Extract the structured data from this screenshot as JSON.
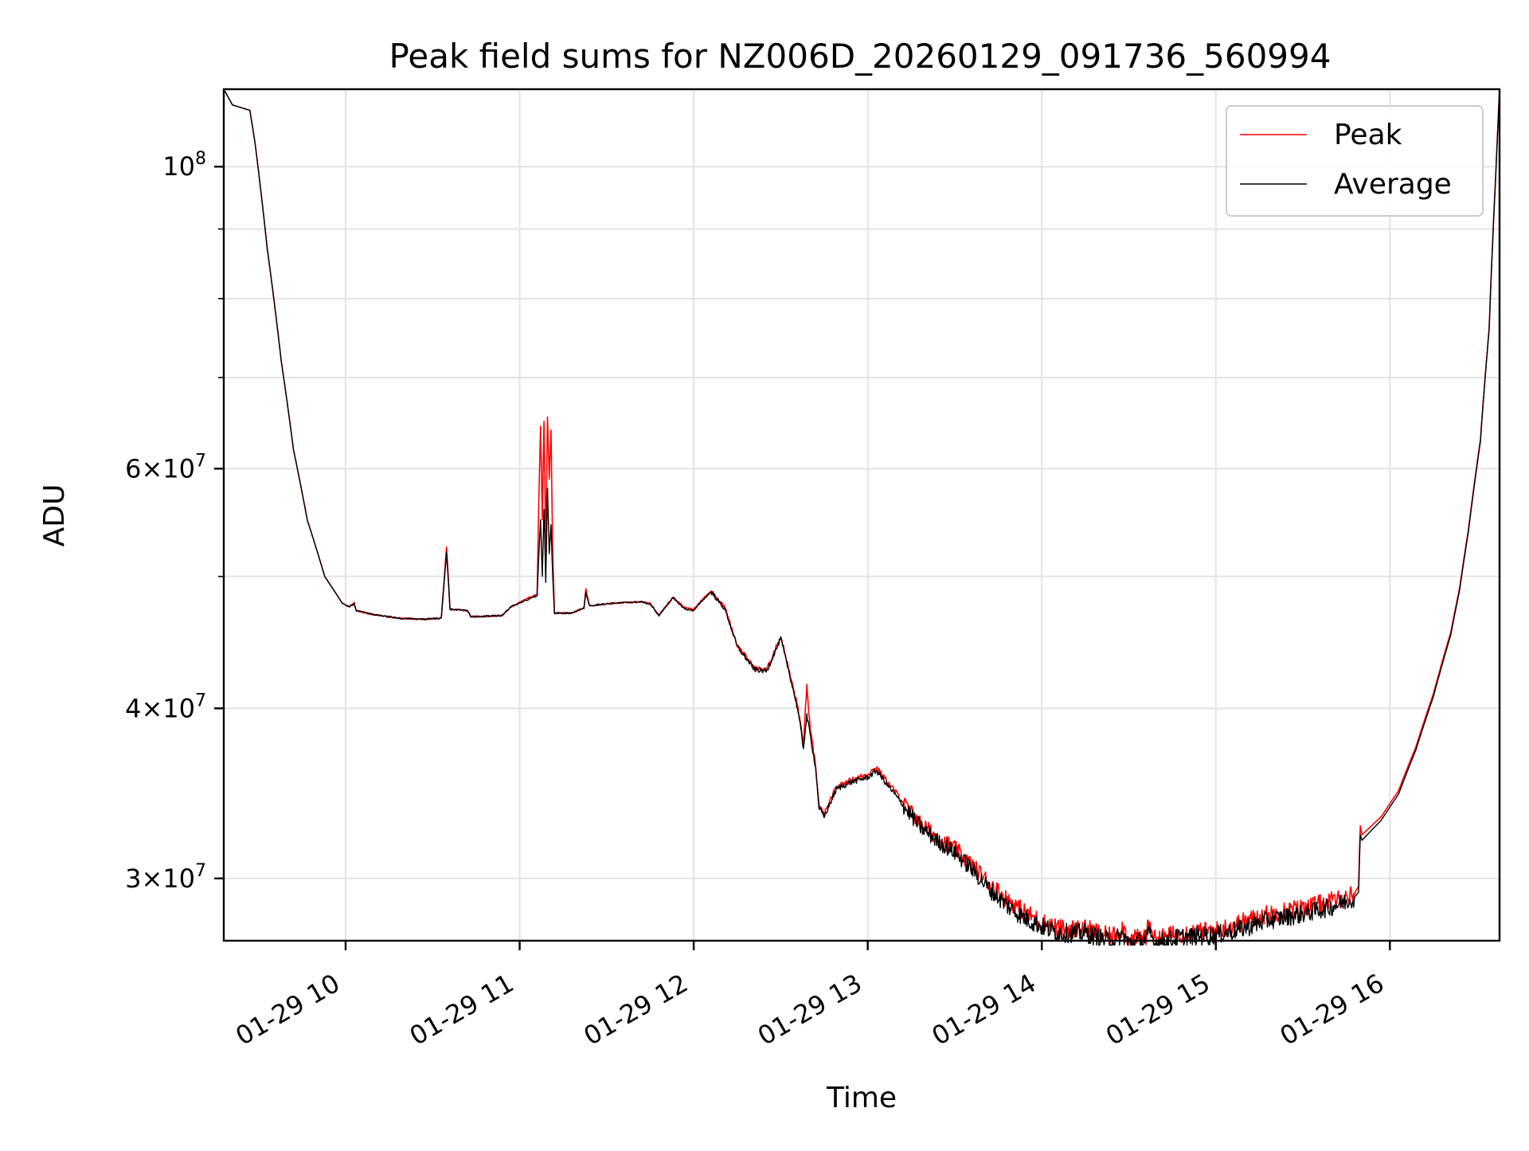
{
  "chart_data": {
    "type": "line",
    "title": "Peak field sums for NZ006D_20260129_091736_560994",
    "xlabel": "Time",
    "ylabel": "ADU",
    "yscale": "log",
    "ylim": [
      27000000,
      114000000
    ],
    "x_unit": "hours since 01-29 00:00",
    "xlim": [
      9.3,
      16.63
    ],
    "x_ticks": [
      {
        "value": 10,
        "label": "01-29 10"
      },
      {
        "value": 11,
        "label": "01-29 11"
      },
      {
        "value": 12,
        "label": "01-29 12"
      },
      {
        "value": 13,
        "label": "01-29 13"
      },
      {
        "value": 14,
        "label": "01-29 14"
      },
      {
        "value": 15,
        "label": "01-29 15"
      },
      {
        "value": 16,
        "label": "01-29 16"
      }
    ],
    "y_ticks": [
      {
        "value": 30000000,
        "mantissa": "3",
        "base": "10",
        "exponent": "7"
      },
      {
        "value": 40000000,
        "mantissa": "4",
        "base": "10",
        "exponent": "7"
      },
      {
        "value": 60000000,
        "mantissa": "6",
        "base": "10",
        "exponent": "7"
      },
      {
        "value": 100000000,
        "mantissa": "",
        "base": "10",
        "exponent": "8"
      }
    ],
    "y_minor_ticks": [
      50000000,
      70000000,
      80000000,
      90000000
    ],
    "grid": true,
    "legend_position": "upper-right",
    "series": [
      {
        "name": "Peak",
        "color": "#ff0000",
        "points": [
          [
            9.3,
            114
          ],
          [
            9.35,
            111
          ],
          [
            9.45,
            110
          ],
          [
            9.48,
            104
          ],
          [
            9.55,
            87
          ],
          [
            9.63,
            72
          ],
          [
            9.7,
            62
          ],
          [
            9.78,
            55
          ],
          [
            9.88,
            50
          ],
          [
            9.98,
            47.8
          ],
          [
            10.02,
            47.5
          ],
          [
            10.05,
            47.8
          ],
          [
            10.06,
            47.2
          ],
          [
            10.15,
            46.9
          ],
          [
            10.3,
            46.6
          ],
          [
            10.45,
            46.5
          ],
          [
            10.55,
            46.6
          ],
          [
            10.58,
            52.5
          ],
          [
            10.6,
            47.3
          ],
          [
            10.7,
            47.2
          ],
          [
            10.72,
            46.7
          ],
          [
            10.9,
            46.8
          ],
          [
            10.95,
            47.5
          ],
          [
            11.05,
            48.2
          ],
          [
            11.1,
            48.5
          ],
          [
            11.12,
            64.5
          ],
          [
            11.13,
            55.0
          ],
          [
            11.14,
            65.0
          ],
          [
            11.15,
            52.0
          ],
          [
            11.16,
            65.5
          ],
          [
            11.17,
            59.0
          ],
          [
            11.18,
            64.0
          ],
          [
            11.19,
            52.0
          ],
          [
            11.2,
            47.0
          ],
          [
            11.3,
            47.0
          ],
          [
            11.37,
            47.4
          ],
          [
            11.38,
            49.0
          ],
          [
            11.4,
            47.6
          ],
          [
            11.55,
            47.8
          ],
          [
            11.7,
            47.9
          ],
          [
            11.75,
            47.8
          ],
          [
            11.8,
            46.8
          ],
          [
            11.88,
            48.3
          ],
          [
            11.95,
            47.4
          ],
          [
            12.0,
            47.3
          ],
          [
            12.05,
            48.1
          ],
          [
            12.1,
            48.8
          ],
          [
            12.18,
            47.4
          ],
          [
            12.25,
            44.5
          ],
          [
            12.35,
            42.8
          ],
          [
            12.42,
            42.7
          ],
          [
            12.5,
            45.2
          ],
          [
            12.55,
            42.5
          ],
          [
            12.6,
            40.0
          ],
          [
            12.63,
            37.6
          ],
          [
            12.65,
            41.5
          ],
          [
            12.67,
            38.5
          ],
          [
            12.7,
            36.4
          ],
          [
            12.72,
            33.9
          ],
          [
            12.75,
            33.4
          ],
          [
            12.82,
            35.0
          ],
          [
            12.9,
            35.4
          ],
          [
            13.0,
            35.8
          ],
          [
            13.05,
            36.2
          ],
          [
            13.1,
            35.5
          ],
          [
            13.2,
            34.2
          ],
          [
            13.3,
            33.0
          ],
          [
            13.4,
            32.2
          ],
          [
            13.5,
            31.6
          ],
          [
            13.6,
            30.7
          ],
          [
            13.7,
            29.8
          ],
          [
            13.8,
            29.0
          ],
          [
            13.9,
            28.4
          ],
          [
            14.0,
            27.9
          ],
          [
            14.1,
            27.6
          ],
          [
            14.25,
            27.6
          ],
          [
            14.4,
            27.2
          ],
          [
            14.47,
            27.7
          ],
          [
            14.5,
            27.0
          ],
          [
            14.6,
            27.3
          ],
          [
            14.62,
            28.0
          ],
          [
            14.65,
            27.1
          ],
          [
            14.8,
            27.4
          ],
          [
            15.0,
            27.5
          ],
          [
            15.15,
            27.9
          ],
          [
            15.3,
            28.3
          ],
          [
            15.5,
            28.6
          ],
          [
            15.65,
            28.9
          ],
          [
            15.75,
            29.1
          ],
          [
            15.8,
            29.3
          ],
          [
            15.82,
            29.6
          ],
          [
            15.83,
            32.8
          ],
          [
            15.84,
            32.3
          ],
          [
            15.95,
            33.3
          ],
          [
            16.05,
            34.8
          ],
          [
            16.15,
            37.5
          ],
          [
            16.25,
            41.0
          ],
          [
            16.35,
            45.5
          ],
          [
            16.4,
            49.0
          ],
          [
            16.45,
            54.0
          ],
          [
            16.52,
            63.0
          ],
          [
            16.57,
            76.0
          ],
          [
            16.61,
            100.0
          ],
          [
            16.63,
            114.0
          ]
        ]
      },
      {
        "name": "Average",
        "color": "#000000",
        "points": [
          [
            9.3,
            114
          ],
          [
            9.35,
            111
          ],
          [
            9.45,
            110
          ],
          [
            9.48,
            104
          ],
          [
            9.55,
            87
          ],
          [
            9.63,
            72
          ],
          [
            9.7,
            62
          ],
          [
            9.78,
            55
          ],
          [
            9.88,
            50
          ],
          [
            9.98,
            47.8
          ],
          [
            10.02,
            47.5
          ],
          [
            10.05,
            47.7
          ],
          [
            10.06,
            47.2
          ],
          [
            10.15,
            46.9
          ],
          [
            10.3,
            46.6
          ],
          [
            10.45,
            46.5
          ],
          [
            10.55,
            46.6
          ],
          [
            10.58,
            52.0
          ],
          [
            10.6,
            47.3
          ],
          [
            10.7,
            47.2
          ],
          [
            10.72,
            46.7
          ],
          [
            10.9,
            46.8
          ],
          [
            10.95,
            47.5
          ],
          [
            11.05,
            48.1
          ],
          [
            11.1,
            48.4
          ],
          [
            11.12,
            55.0
          ],
          [
            11.13,
            50.0
          ],
          [
            11.14,
            56.0
          ],
          [
            11.15,
            49.5
          ],
          [
            11.16,
            58.0
          ],
          [
            11.17,
            52.0
          ],
          [
            11.18,
            54.5
          ],
          [
            11.19,
            50.0
          ],
          [
            11.2,
            47.0
          ],
          [
            11.3,
            47.0
          ],
          [
            11.37,
            47.4
          ],
          [
            11.38,
            48.6
          ],
          [
            11.4,
            47.6
          ],
          [
            11.55,
            47.8
          ],
          [
            11.7,
            47.9
          ],
          [
            11.75,
            47.7
          ],
          [
            11.8,
            46.8
          ],
          [
            11.88,
            48.2
          ],
          [
            11.95,
            47.3
          ],
          [
            12.0,
            47.2
          ],
          [
            12.05,
            48.0
          ],
          [
            12.1,
            48.7
          ],
          [
            12.18,
            47.3
          ],
          [
            12.25,
            44.4
          ],
          [
            12.35,
            42.7
          ],
          [
            12.42,
            42.6
          ],
          [
            12.5,
            45.0
          ],
          [
            12.55,
            42.4
          ],
          [
            12.6,
            39.8
          ],
          [
            12.63,
            37.4
          ],
          [
            12.65,
            39.5
          ],
          [
            12.67,
            38.2
          ],
          [
            12.7,
            36.2
          ],
          [
            12.72,
            33.8
          ],
          [
            12.75,
            33.3
          ],
          [
            12.82,
            34.9
          ],
          [
            12.9,
            35.3
          ],
          [
            13.0,
            35.6
          ],
          [
            13.05,
            36.0
          ],
          [
            13.1,
            35.3
          ],
          [
            13.2,
            34.0
          ],
          [
            13.3,
            32.8
          ],
          [
            13.4,
            32.0
          ],
          [
            13.5,
            31.4
          ],
          [
            13.6,
            30.5
          ],
          [
            13.7,
            29.5
          ],
          [
            13.8,
            28.7
          ],
          [
            13.9,
            28.1
          ],
          [
            14.0,
            27.7
          ],
          [
            14.1,
            27.4
          ],
          [
            14.25,
            27.4
          ],
          [
            14.4,
            27.0
          ],
          [
            14.47,
            27.3
          ],
          [
            14.5,
            26.9
          ],
          [
            14.6,
            27.1
          ],
          [
            14.62,
            27.4
          ],
          [
            14.65,
            26.9
          ],
          [
            14.8,
            27.2
          ],
          [
            15.0,
            27.3
          ],
          [
            15.15,
            27.6
          ],
          [
            15.3,
            28.0
          ],
          [
            15.5,
            28.3
          ],
          [
            15.65,
            28.6
          ],
          [
            15.75,
            28.9
          ],
          [
            15.8,
            29.1
          ],
          [
            15.82,
            29.3
          ],
          [
            15.83,
            32.3
          ],
          [
            15.84,
            32.0
          ],
          [
            15.95,
            33.1
          ],
          [
            16.05,
            34.6
          ],
          [
            16.15,
            37.3
          ],
          [
            16.25,
            40.8
          ],
          [
            16.35,
            45.3
          ],
          [
            16.4,
            48.8
          ],
          [
            16.45,
            53.8
          ],
          [
            16.52,
            62.8
          ],
          [
            16.57,
            75.8
          ],
          [
            16.61,
            99.5
          ],
          [
            16.63,
            114.0
          ]
        ],
        "values_scale": 1000000
      }
    ]
  }
}
